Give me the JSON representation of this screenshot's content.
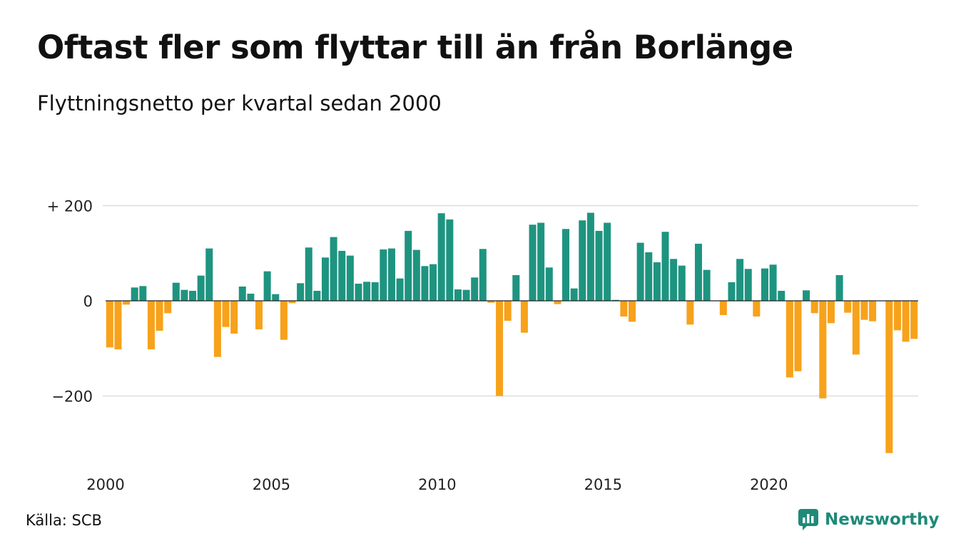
{
  "header": {
    "title": "Oftast fler som flyttar till än från Borlänge",
    "subtitle": "Flyttningsnetto per kvartal sedan 2000"
  },
  "footer": {
    "source": "Källa: SCB",
    "brand": "Newsworthy"
  },
  "colors": {
    "positive": "#1e9480",
    "negative": "#f7a21b",
    "grid": "#dddddd",
    "zero_line": "#222222",
    "brand": "#1e8a78"
  },
  "chart_data": {
    "type": "bar",
    "title": "Oftast fler som flyttar till än från Borlänge",
    "subtitle": "Flyttningsnetto per kvartal sedan 2000",
    "start_year": 2000,
    "periods_per_year": 4,
    "ylim": [
      -320,
      200
    ],
    "yticks": [
      200,
      0,
      -200
    ],
    "ytick_labels": [
      "+ 200",
      "0",
      "−200"
    ],
    "xtick_labels": [
      "2000",
      "2005",
      "2010",
      "2015",
      "2020"
    ],
    "grid": true,
    "values": [
      -98,
      -102,
      -8,
      28,
      31,
      -102,
      -63,
      -26,
      38,
      23,
      21,
      53,
      110,
      -118,
      -55,
      -69,
      30,
      15,
      -60,
      62,
      14,
      -82,
      -5,
      37,
      112,
      21,
      91,
      134,
      105,
      95,
      36,
      40,
      39,
      108,
      110,
      47,
      147,
      107,
      73,
      77,
      184,
      171,
      24,
      23,
      49,
      109,
      -4,
      -200,
      -42,
      54,
      -67,
      160,
      164,
      70,
      -7,
      151,
      26,
      169,
      185,
      147,
      164,
      2,
      -33,
      -44,
      122,
      102,
      81,
      145,
      88,
      74,
      -50,
      120,
      65,
      0,
      -30,
      39,
      88,
      67,
      -33,
      68,
      76,
      21,
      -161,
      -148,
      22,
      -26,
      -205,
      -47,
      54,
      -25,
      -113,
      -40,
      -43,
      0,
      -320,
      -62,
      -86,
      -80
    ]
  }
}
